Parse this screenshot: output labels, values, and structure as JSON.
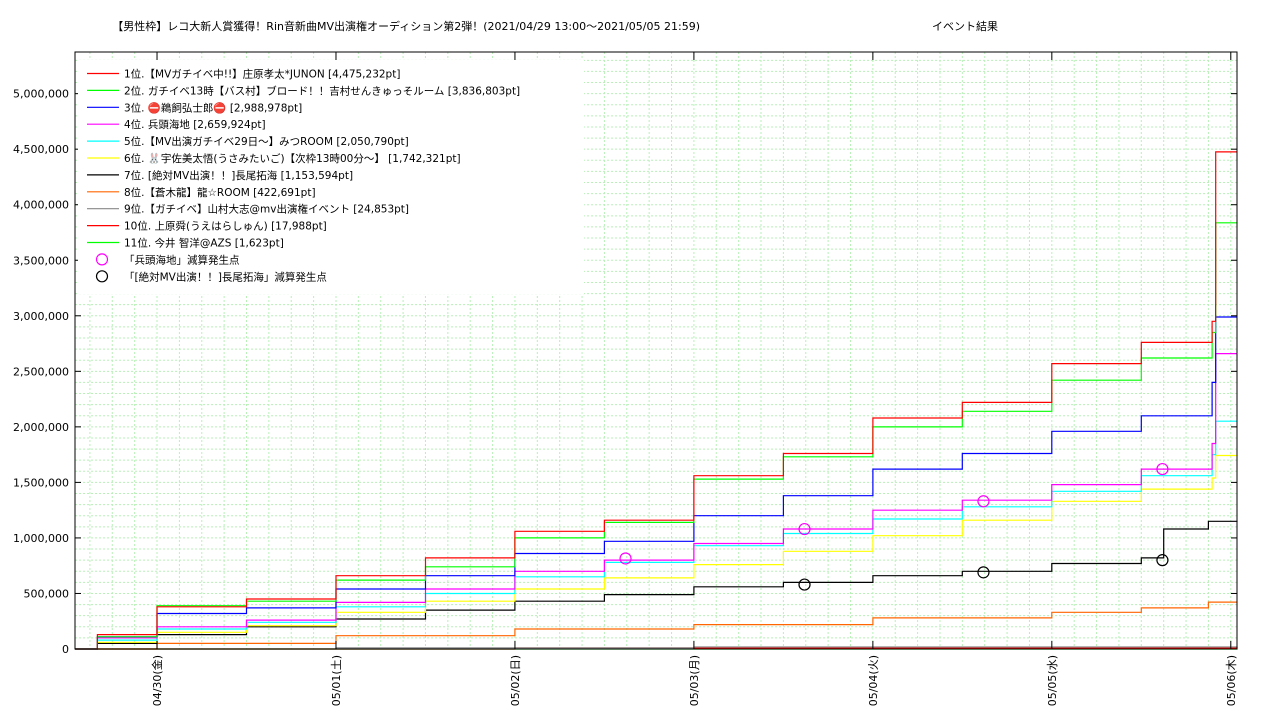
{
  "chart_data": {
    "type": "line",
    "title": "【男性枠】レコ大新人賞獲得！Rin音新曲MV出演権オーディション第2弾！(2021/04/29 13:00〜2021/05/05 21:59)",
    "subtitle": "イベント結果",
    "x_start": "2021/04/29 13:00",
    "x_end": "2021/05/06 00:50",
    "x_ticks": [
      {
        "x": "2021/04/30 00:00",
        "label": "04/30(金)"
      },
      {
        "x": "2021/05/01 00:00",
        "label": "05/01(土)"
      },
      {
        "x": "2021/05/02 00:00",
        "label": "05/02(日)"
      },
      {
        "x": "2021/05/03 00:00",
        "label": "05/03(月)"
      },
      {
        "x": "2021/05/04 00:00",
        "label": "05/04(火)"
      },
      {
        "x": "2021/05/05 00:00",
        "label": "05/05(水)"
      },
      {
        "x": "2021/05/06 00:00",
        "label": "05/06(木)"
      }
    ],
    "ylim": [
      0,
      5375000
    ],
    "y_ticks": [
      {
        "v": 0,
        "label": "0"
      },
      {
        "v": 500000,
        "label": "500,000"
      },
      {
        "v": 1000000,
        "label": "1,000,000"
      },
      {
        "v": 1500000,
        "label": "1,500,000"
      },
      {
        "v": 2000000,
        "label": "2,000,000"
      },
      {
        "v": 2500000,
        "label": "2,500,000"
      },
      {
        "v": 3000000,
        "label": "3,000,000"
      },
      {
        "v": 3500000,
        "label": "3,500,000"
      },
      {
        "v": 4000000,
        "label": "4,000,000"
      },
      {
        "v": 4500000,
        "label": "4,500,000"
      },
      {
        "v": 5000000,
        "label": "5,000,000"
      }
    ],
    "grid": true,
    "legend_position": "top-left",
    "series": [
      {
        "name": "1位.【MVガチイベ中!!】庄原孝太*JUNON [4,475,232pt]",
        "color": "#ff0000",
        "points": [
          [
            "2021/04/29 13:00",
            0
          ],
          [
            "2021/04/29 16:00",
            130000
          ],
          [
            "2021/04/30 00:00",
            380000
          ],
          [
            "2021/04/30 12:00",
            450000
          ],
          [
            "2021/05/01 00:00",
            660000
          ],
          [
            "2021/05/01 12:00",
            820000
          ],
          [
            "2021/05/02 00:00",
            1060000
          ],
          [
            "2021/05/02 12:00",
            1160000
          ],
          [
            "2021/05/03 00:00",
            1560000
          ],
          [
            "2021/05/03 12:00",
            1760000
          ],
          [
            "2021/05/04 00:00",
            2080000
          ],
          [
            "2021/05/04 12:00",
            2220000
          ],
          [
            "2021/05/05 00:00",
            2570000
          ],
          [
            "2021/05/05 12:00",
            2760000
          ],
          [
            "2021/05/05 21:30",
            2950000
          ],
          [
            "2021/05/05 21:58",
            3100000
          ],
          [
            "2021/05/05 21:59",
            4475232
          ],
          [
            "2021/05/06 00:50",
            4475232
          ]
        ]
      },
      {
        "name": "2位. ガチイベ13時【バス村】ブロード！！吉村せんきゅっそルーム [3,836,803pt]",
        "color": "#00ff00",
        "points": [
          [
            "2021/04/29 13:00",
            0
          ],
          [
            "2021/04/29 16:00",
            110000
          ],
          [
            "2021/04/30 00:00",
            390000
          ],
          [
            "2021/04/30 12:00",
            430000
          ],
          [
            "2021/05/01 00:00",
            620000
          ],
          [
            "2021/05/01 12:00",
            740000
          ],
          [
            "2021/05/02 00:00",
            1000000
          ],
          [
            "2021/05/02 12:00",
            1140000
          ],
          [
            "2021/05/03 00:00",
            1530000
          ],
          [
            "2021/05/03 12:00",
            1730000
          ],
          [
            "2021/05/04 00:00",
            2000000
          ],
          [
            "2021/05/04 12:00",
            2140000
          ],
          [
            "2021/05/05 00:00",
            2420000
          ],
          [
            "2021/05/05 12:00",
            2620000
          ],
          [
            "2021/05/05 21:30",
            2850000
          ],
          [
            "2021/05/05 21:58",
            3000000
          ],
          [
            "2021/05/05 21:59",
            3836803
          ],
          [
            "2021/05/06 00:50",
            3836803
          ]
        ]
      },
      {
        "name": "3位. ⛔鵜飼弘士郎⛔ [2,988,978pt]",
        "color": "#0000ff",
        "points": [
          [
            "2021/04/29 13:00",
            0
          ],
          [
            "2021/04/29 16:00",
            110000
          ],
          [
            "2021/04/30 00:00",
            320000
          ],
          [
            "2021/04/30 12:00",
            370000
          ],
          [
            "2021/05/01 00:00",
            540000
          ],
          [
            "2021/05/01 12:00",
            660000
          ],
          [
            "2021/05/02 00:00",
            860000
          ],
          [
            "2021/05/02 12:00",
            970000
          ],
          [
            "2021/05/03 00:00",
            1200000
          ],
          [
            "2021/05/03 12:00",
            1380000
          ],
          [
            "2021/05/04 00:00",
            1620000
          ],
          [
            "2021/05/04 12:00",
            1760000
          ],
          [
            "2021/05/05 00:00",
            1960000
          ],
          [
            "2021/05/05 12:00",
            2100000
          ],
          [
            "2021/05/05 21:30",
            2400000
          ],
          [
            "2021/05/05 21:59",
            2988978
          ],
          [
            "2021/05/06 00:50",
            2988978
          ]
        ]
      },
      {
        "name": "4位. 兵頭海地 [2,659,924pt]",
        "color": "#ff00ff",
        "points": [
          [
            "2021/04/29 13:00",
            0
          ],
          [
            "2021/04/29 16:00",
            100000
          ],
          [
            "2021/04/30 00:00",
            200000
          ],
          [
            "2021/04/30 12:00",
            260000
          ],
          [
            "2021/05/01 00:00",
            420000
          ],
          [
            "2021/05/01 12:00",
            540000
          ],
          [
            "2021/05/02 00:00",
            700000
          ],
          [
            "2021/05/02 12:00",
            800000
          ],
          [
            "2021/05/03 00:00",
            950000
          ],
          [
            "2021/05/03 12:00",
            1080000
          ],
          [
            "2021/05/04 00:00",
            1250000
          ],
          [
            "2021/05/04 12:00",
            1340000
          ],
          [
            "2021/05/05 00:00",
            1480000
          ],
          [
            "2021/05/05 12:00",
            1620000
          ],
          [
            "2021/05/05 21:30",
            1850000
          ],
          [
            "2021/05/05 21:59",
            2659924
          ],
          [
            "2021/05/06 00:50",
            2659924
          ]
        ]
      },
      {
        "name": "5位.【MV出演ガチイベ29日〜】みつROOM [2,050,790pt]",
        "color": "#00ffff",
        "points": [
          [
            "2021/04/29 13:00",
            0
          ],
          [
            "2021/04/29 16:00",
            80000
          ],
          [
            "2021/04/30 00:00",
            180000
          ],
          [
            "2021/04/30 12:00",
            240000
          ],
          [
            "2021/05/01 00:00",
            380000
          ],
          [
            "2021/05/01 12:00",
            500000
          ],
          [
            "2021/05/02 00:00",
            650000
          ],
          [
            "2021/05/02 12:00",
            780000
          ],
          [
            "2021/05/03 00:00",
            930000
          ],
          [
            "2021/05/03 12:00",
            1040000
          ],
          [
            "2021/05/04 00:00",
            1170000
          ],
          [
            "2021/05/04 12:00",
            1280000
          ],
          [
            "2021/05/05 00:00",
            1420000
          ],
          [
            "2021/05/05 12:00",
            1560000
          ],
          [
            "2021/05/05 21:30",
            1750000
          ],
          [
            "2021/05/05 21:59",
            2050790
          ],
          [
            "2021/05/06 00:50",
            2050790
          ]
        ]
      },
      {
        "name": "6位. 🐰宇佐美太悟(うさみたいご)【次枠13時00分〜】 [1,742,321pt]",
        "color": "#ffff00",
        "points": [
          [
            "2021/04/29 13:00",
            0
          ],
          [
            "2021/04/29 16:00",
            60000
          ],
          [
            "2021/04/30 00:00",
            150000
          ],
          [
            "2021/04/30 12:00",
            210000
          ],
          [
            "2021/05/01 00:00",
            330000
          ],
          [
            "2021/05/01 12:00",
            430000
          ],
          [
            "2021/05/02 00:00",
            540000
          ],
          [
            "2021/05/02 12:00",
            640000
          ],
          [
            "2021/05/03 00:00",
            760000
          ],
          [
            "2021/05/03 12:00",
            880000
          ],
          [
            "2021/05/04 00:00",
            1020000
          ],
          [
            "2021/05/04 12:00",
            1160000
          ],
          [
            "2021/05/05 00:00",
            1330000
          ],
          [
            "2021/05/05 12:00",
            1440000
          ],
          [
            "2021/05/05 21:30",
            1540000
          ],
          [
            "2021/05/05 21:59",
            1742321
          ],
          [
            "2021/05/06 00:50",
            1742321
          ]
        ]
      },
      {
        "name": "7位. [絶対MV出演！！]長尾拓海 [1,153,594pt]",
        "color": "#000000",
        "points": [
          [
            "2021/04/29 13:00",
            0
          ],
          [
            "2021/04/29 16:00",
            50000
          ],
          [
            "2021/04/30 00:00",
            130000
          ],
          [
            "2021/04/30 12:00",
            200000
          ],
          [
            "2021/05/01 00:00",
            270000
          ],
          [
            "2021/05/01 12:00",
            350000
          ],
          [
            "2021/05/02 00:00",
            430000
          ],
          [
            "2021/05/02 12:00",
            490000
          ],
          [
            "2021/05/03 00:00",
            560000
          ],
          [
            "2021/05/03 12:00",
            600000
          ],
          [
            "2021/05/04 00:00",
            660000
          ],
          [
            "2021/05/04 12:00",
            700000
          ],
          [
            "2021/05/05 00:00",
            770000
          ],
          [
            "2021/05/05 12:00",
            820000
          ],
          [
            "2021/05/05 15:00",
            1080000
          ],
          [
            "2021/05/05 21:00",
            1150000
          ],
          [
            "2021/05/06 00:50",
            1153594
          ]
        ]
      },
      {
        "name": "8位.【蒼木龍】龍☆ROOM [422,691pt]",
        "color": "#ff6600",
        "points": [
          [
            "2021/04/29 13:00",
            0
          ],
          [
            "2021/04/30 00:00",
            50000
          ],
          [
            "2021/05/01 00:00",
            120000
          ],
          [
            "2021/05/02 00:00",
            180000
          ],
          [
            "2021/05/03 00:00",
            220000
          ],
          [
            "2021/05/04 00:00",
            280000
          ],
          [
            "2021/05/05 00:00",
            330000
          ],
          [
            "2021/05/05 12:00",
            370000
          ],
          [
            "2021/05/05 21:00",
            422691
          ],
          [
            "2021/05/06 00:50",
            422691
          ]
        ]
      },
      {
        "name": "9位.【ガチイベ】山村大志@mv出演権イベント [24,853pt]",
        "color": "#888888",
        "points": [
          [
            "2021/04/29 13:00",
            0
          ],
          [
            "2021/05/01 00:00",
            10000
          ],
          [
            "2021/05/03 00:00",
            18000
          ],
          [
            "2021/05/06 00:50",
            24853
          ]
        ]
      },
      {
        "name": "10位. 上原舜(うえはらしゅん) [17,988pt]",
        "color": "#ff0000",
        "points": [
          [
            "2021/04/29 13:00",
            0
          ],
          [
            "2021/05/02 00:00",
            9000
          ],
          [
            "2021/05/06 00:50",
            17988
          ]
        ]
      },
      {
        "name": "11位. 今井 智洋@AZS [1,623pt]",
        "color": "#00ff00",
        "points": [
          [
            "2021/04/29 13:00",
            0
          ],
          [
            "2021/05/06 00:50",
            1623
          ]
        ]
      }
    ],
    "markers": [
      {
        "name": "「兵頭海地」減算発生点",
        "color": "#ff00ff",
        "points": [
          [
            "2021/05/02 14:50",
            815000
          ],
          [
            "2021/05/03 14:50",
            1080000
          ],
          [
            "2021/05/04 14:50",
            1330000
          ],
          [
            "2021/05/05 14:50",
            1620000
          ]
        ]
      },
      {
        "name": "「[絶対MV出演！！]長尾拓海」減算発生点",
        "color": "#000000",
        "points": [
          [
            "2021/05/03 14:50",
            580000
          ],
          [
            "2021/05/04 14:50",
            690000
          ],
          [
            "2021/05/05 14:50",
            800000
          ]
        ]
      }
    ]
  }
}
